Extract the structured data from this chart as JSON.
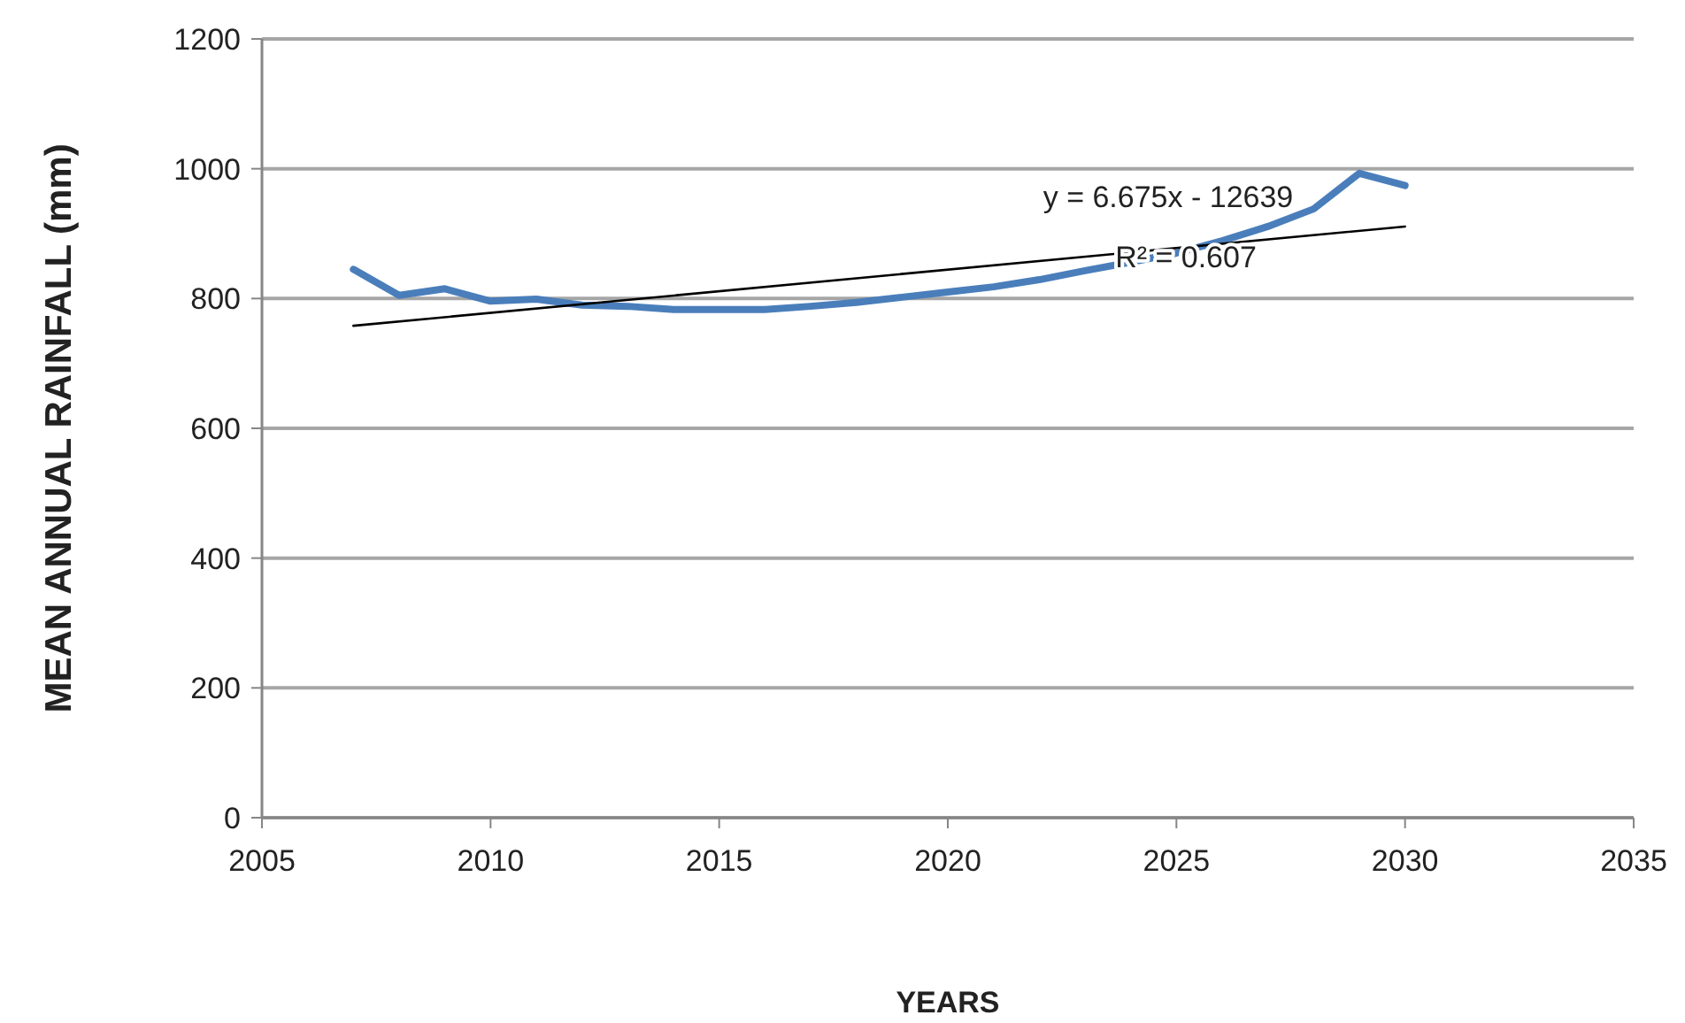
{
  "chart_data": {
    "type": "line",
    "xlabel": "YEARS",
    "ylabel": "MEAN ANNUAL RAINFALL (mm)",
    "xlim": [
      2005,
      2035
    ],
    "xticks": [
      2005,
      2010,
      2015,
      2020,
      2025,
      2030,
      2035
    ],
    "ylim": [
      0,
      1200
    ],
    "yticks": [
      0,
      200,
      400,
      600,
      800,
      1000,
      1200
    ],
    "grid": "y",
    "marker": "none",
    "annotations": [
      "y = 6.675x - 12639",
      "R² = 0.607"
    ],
    "series": [
      {
        "color": "#4a7ebb",
        "x": [
          2007,
          2008,
          2009,
          2010,
          2011,
          2012,
          2013,
          2014,
          2015,
          2016,
          2017,
          2018,
          2019,
          2020,
          2021,
          2022,
          2023,
          2024,
          2025,
          2026,
          2027,
          2028,
          2029,
          2030
        ],
        "values": [
          845,
          805,
          815,
          796,
          799,
          790,
          788,
          783,
          783,
          783,
          788,
          794,
          802,
          810,
          818,
          829,
          843,
          856,
          870,
          889,
          911,
          938,
          993,
          974
        ]
      },
      {
        "type": "line",
        "color": "#000000",
        "x": [
          2007,
          2030
        ],
        "values": [
          758,
          911
        ]
      }
    ]
  }
}
